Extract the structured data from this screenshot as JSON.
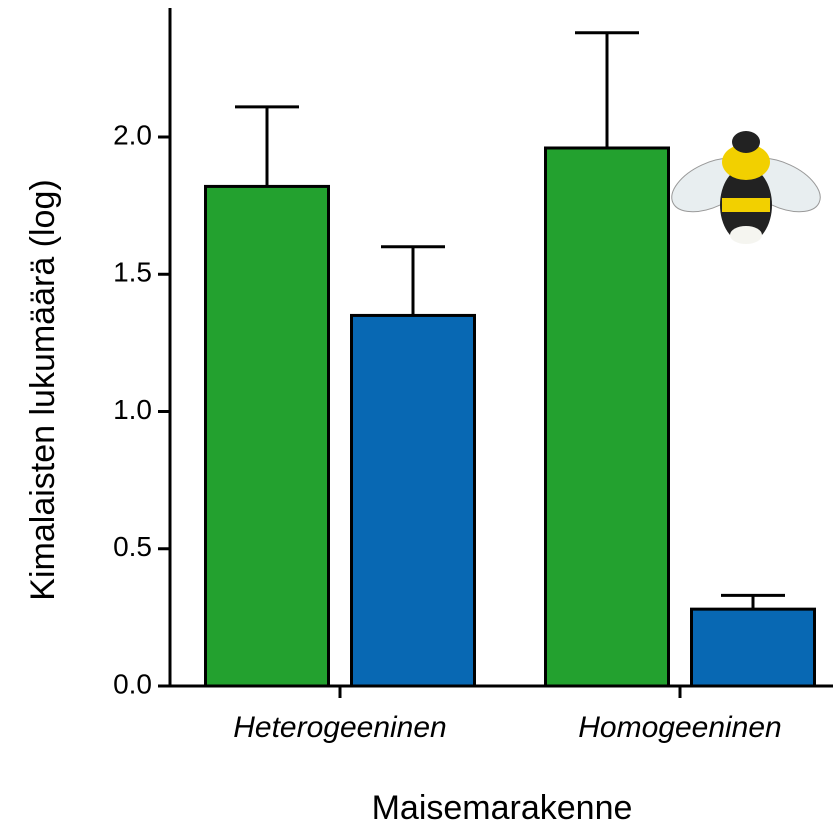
{
  "chart_data": {
    "type": "bar",
    "x_label": "Maisemarakenne",
    "y_label": "Kimalaisten lukumäärä (log)",
    "categories": [
      "Heterogeeninen",
      "Homogeeninen"
    ],
    "series": [
      {
        "color": "#23a12f",
        "values": [
          1.82,
          1.96
        ],
        "errors": [
          0.29,
          0.42
        ]
      },
      {
        "color": "#0868b3",
        "values": [
          1.35,
          0.28
        ],
        "errors": [
          0.25,
          0.05
        ]
      }
    ],
    "ylim": [
      0,
      2.47
    ],
    "yticks": [
      {
        "value": 0,
        "label": "0.0"
      },
      0.5,
      {
        "value": 1,
        "label": "1.0"
      },
      1.5,
      {
        "value": 2,
        "label": "2.0"
      }
    ]
  }
}
